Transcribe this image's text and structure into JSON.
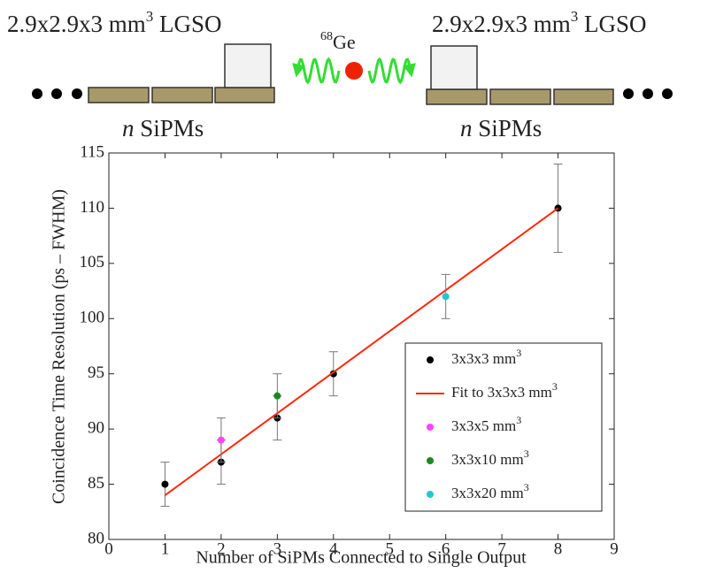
{
  "diagram": {
    "left_label": {
      "text": "2.9x2.9x3 mm",
      "sup": "3",
      "rest": " LGSO"
    },
    "right_label": {
      "text": "2.9x2.9x3 mm",
      "sup": "3",
      "rest": " LGSO"
    },
    "source": {
      "sup": "68",
      "text": "Ge"
    },
    "left_sipms": {
      "italic": "n",
      "text": " SiPMs"
    },
    "right_sipms": {
      "italic": "n",
      "text": " SiPMs"
    }
  },
  "chart_data": {
    "type": "scatter",
    "xlabel": "Number of SiPMs Connected to Single Output",
    "ylabel": "Coincidence Time Resolution (ps – FWHM)",
    "xlim": [
      0,
      9
    ],
    "xticks": [
      0,
      1,
      2,
      3,
      4,
      5,
      6,
      7,
      8,
      9
    ],
    "ylim": [
      80,
      115
    ],
    "yticks": [
      80,
      85,
      90,
      95,
      100,
      105,
      110,
      115
    ],
    "grid": false,
    "legend": "lower right",
    "series": [
      {
        "name": "3x3x3 mm",
        "name_sup": "3",
        "kind": "points",
        "color": "#000000",
        "x": [
          1,
          2,
          3,
          4,
          8
        ],
        "values": [
          85,
          87,
          91,
          95,
          110
        ],
        "errors": [
          2,
          2,
          2,
          2,
          4
        ]
      },
      {
        "name": "Fit to 3x3x3 mm",
        "name_sup": "3",
        "kind": "line",
        "color": "#ff2a0a",
        "x": [
          1,
          8
        ],
        "values": [
          84,
          110
        ]
      },
      {
        "name": "3x3x5 mm",
        "name_sup": "3",
        "kind": "points",
        "color": "#ff44ff",
        "x": [
          2
        ],
        "values": [
          89
        ],
        "errors": [
          2
        ]
      },
      {
        "name": "3x3x10 mm",
        "name_sup": "3",
        "kind": "points",
        "color": "#1a8a1a",
        "x": [
          3
        ],
        "values": [
          93
        ],
        "errors": [
          2
        ]
      },
      {
        "name": "3x3x20 mm",
        "name_sup": "3",
        "kind": "points",
        "color": "#22c8d0",
        "x": [
          6
        ],
        "values": [
          102
        ],
        "errors": [
          2
        ]
      }
    ]
  }
}
